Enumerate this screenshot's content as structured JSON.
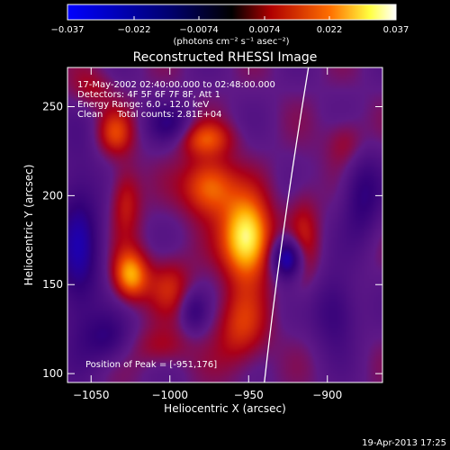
{
  "chart_data": {
    "type": "heatmap",
    "title": "Reconstructed RHESSI Image",
    "xlabel": "Heliocentric X (arcsec)",
    "ylabel": "Heliocentric Y (arcsec)",
    "xlim": [
      -1065,
      -865
    ],
    "ylim": [
      95,
      272
    ],
    "x_ticks": [
      {
        "v": -1050,
        "label": "−1050"
      },
      {
        "v": -1000,
        "label": "−1000"
      },
      {
        "v": -950,
        "label": "−950"
      },
      {
        "v": -900,
        "label": "−900"
      }
    ],
    "y_ticks": [
      {
        "v": 100,
        "label": "100"
      },
      {
        "v": 150,
        "label": "150"
      },
      {
        "v": 200,
        "label": "200"
      },
      {
        "v": 250,
        "label": "250"
      }
    ],
    "colorbar": {
      "min": -0.037,
      "max": 0.037,
      "ticks": [
        {
          "v": -0.037,
          "label": "−0.037"
        },
        {
          "v": -0.022,
          "label": "−0.022"
        },
        {
          "v": -0.0074,
          "label": "−0.0074"
        },
        {
          "v": 0.0074,
          "label": "0.0074"
        },
        {
          "v": 0.022,
          "label": "0.022"
        },
        {
          "v": 0.037,
          "label": "0.037"
        }
      ],
      "unit_label": "(photons cm⁻² s⁻¹ asec⁻²)",
      "colors": [
        "#0000ff",
        "#000000",
        "#b00000",
        "#ff9000",
        "#ffff80",
        "#ffffff"
      ]
    },
    "annotations": [
      "17-May-2002 02:40:00.000 to 02:48:00.000",
      "Detectors: 4F 5F 6F 7F 8F, Att 1",
      "Energy Range: 6.0 - 12.0 keV",
      "Clean     Total counts: 2.81E+04"
    ],
    "peak_label": "Position of Peak = [-951,176]",
    "peak": {
      "x": -951,
      "y": 176
    },
    "limb_curve": [
      [
        -940,
        95
      ],
      [
        -930,
        175
      ],
      [
        -912,
        272
      ]
    ],
    "blobs": [
      {
        "x": -951,
        "y": 176,
        "sx": 11,
        "sy": 16,
        "a": 0.037
      },
      {
        "x": -975,
        "y": 205,
        "sx": 12,
        "sy": 12,
        "a": 0.024
      },
      {
        "x": -978,
        "y": 232,
        "sx": 13,
        "sy": 7,
        "a": 0.016
      },
      {
        "x": -1025,
        "y": 155,
        "sx": 8,
        "sy": 10,
        "a": 0.026
      },
      {
        "x": -1028,
        "y": 198,
        "sx": 7,
        "sy": 14,
        "a": 0.014
      },
      {
        "x": -1035,
        "y": 235,
        "sx": 8,
        "sy": 9,
        "a": 0.015
      },
      {
        "x": -1000,
        "y": 150,
        "sx": 10,
        "sy": 12,
        "a": 0.012
      },
      {
        "x": -955,
        "y": 125,
        "sx": 12,
        "sy": 16,
        "a": 0.015
      },
      {
        "x": -1005,
        "y": 115,
        "sx": 12,
        "sy": 8,
        "a": 0.01
      },
      {
        "x": -915,
        "y": 175,
        "sx": 7,
        "sy": 22,
        "a": 0.011
      },
      {
        "x": -888,
        "y": 230,
        "sx": 9,
        "sy": 10,
        "a": 0.01
      },
      {
        "x": -1050,
        "y": 260,
        "sx": 10,
        "sy": 8,
        "a": 0.009
      },
      {
        "x": -925,
        "y": 165,
        "sx": 7,
        "sy": 8,
        "a": -0.03
      },
      {
        "x": -1058,
        "y": 170,
        "sx": 10,
        "sy": 35,
        "a": -0.02
      },
      {
        "x": -1000,
        "y": 240,
        "sx": 10,
        "sy": 8,
        "a": -0.014
      },
      {
        "x": -895,
        "y": 135,
        "sx": 10,
        "sy": 15,
        "a": -0.015
      },
      {
        "x": -878,
        "y": 200,
        "sx": 9,
        "sy": 18,
        "a": -0.016
      },
      {
        "x": -985,
        "y": 135,
        "sx": 6,
        "sy": 8,
        "a": -0.012
      },
      {
        "x": -1040,
        "y": 120,
        "sx": 10,
        "sy": 10,
        "a": -0.014
      }
    ]
  },
  "footer": {
    "date": "19-Apr-2013 17:25"
  }
}
